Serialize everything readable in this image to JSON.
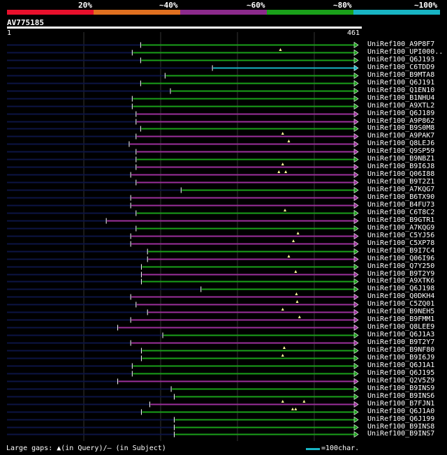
{
  "legend": {
    "items": [
      {
        "label": "20%",
        "color": "#e8102c"
      },
      {
        "label": "~40%",
        "color": "#e07020"
      },
      {
        "label": "~60%",
        "color": "#8c2a8c"
      },
      {
        "label": "~80%",
        "color": "#1aa01a"
      },
      {
        "label": "~100%",
        "color": "#18b4c4"
      }
    ]
  },
  "query": {
    "accession": "AV775185",
    "start_label": "1",
    "end_label": "461",
    "length": 461
  },
  "colors": {
    "green": "#1aa01a",
    "purple": "#9b2f9b",
    "cyan": "#18b4c4",
    "navy": "#0c1444",
    "grid": "#333333",
    "ruler": "#ffffff"
  },
  "hits": [
    {
      "name": "UniRef100_A9P8F7",
      "color": "green",
      "start": 176,
      "gap": null
    },
    {
      "name": "UniRef100_UPI000..",
      "color": "green",
      "start": 165,
      "gap": null
    },
    {
      "name": "UniRef100_Q6J193",
      "color": "green",
      "start": 176,
      "gap": null
    },
    {
      "name": "UniRef100_C6TDD9",
      "color": "cyan",
      "start": 270,
      "gap": null
    },
    {
      "name": "UniRef100_B9MTA8",
      "color": "green",
      "start": 208,
      "gap": null
    },
    {
      "name": "UniRef100_Q6J191",
      "color": "green",
      "start": 176,
      "gap": null
    },
    {
      "name": "UniRef100_Q1EN10",
      "color": "green",
      "start": 215,
      "gap": null
    },
    {
      "name": "UniRef100_B1NHU4",
      "color": "green",
      "start": 165,
      "gap": null
    },
    {
      "name": "UniRef100_A9XTL2",
      "color": "green",
      "start": 165,
      "gap": null
    },
    {
      "name": "UniRef100_Q6J189",
      "color": "purple",
      "start": 170,
      "gap": null
    },
    {
      "name": "UniRef100_A9P862",
      "color": "purple",
      "start": 170,
      "gap": null
    },
    {
      "name": "UniRef100_B9S0M8",
      "color": "green",
      "start": 176,
      "gap": null
    },
    {
      "name": "UniRef100_A9PAK7",
      "color": "purple",
      "start": 170,
      "gap": null
    },
    {
      "name": "UniRef100_Q8LEJ6",
      "color": "purple",
      "start": 161,
      "gap": null
    },
    {
      "name": "UniRef100_Q9SP59",
      "color": "purple",
      "start": 170,
      "gap": null
    },
    {
      "name": "UniRef100_B9NBZ1",
      "color": "green",
      "start": 170,
      "gap": null
    },
    {
      "name": "UniRef100_B9I6J8",
      "color": "purple",
      "start": 170,
      "gap": null
    },
    {
      "name": "UniRef100_Q06I88",
      "color": "purple",
      "start": 163,
      "gap": null
    },
    {
      "name": "UniRef100_B9T2Z1",
      "color": "purple",
      "start": 170,
      "gap": null
    },
    {
      "name": "UniRef100_A7KQG7",
      "color": "green",
      "start": 229,
      "gap": null
    },
    {
      "name": "UniRef100_B6TX90",
      "color": "purple",
      "start": 163,
      "gap": null
    },
    {
      "name": "UniRef100_B4FU73",
      "color": "purple",
      "start": 163,
      "gap": null
    },
    {
      "name": "UniRef100_C6T8C2",
      "color": "green",
      "start": 170,
      "gap": null
    },
    {
      "name": "UniRef100_B9GTR1",
      "color": "purple",
      "start": 131,
      "gap": null
    },
    {
      "name": "UniRef100_A7KQG9",
      "color": "green",
      "start": 170,
      "gap": null
    },
    {
      "name": "UniRef100_C5YJ56",
      "color": "purple",
      "start": 163,
      "gap": null
    },
    {
      "name": "UniRef100_C5XP78",
      "color": "purple",
      "start": 163,
      "gap": null
    },
    {
      "name": "UniRef100_B9I7C4",
      "color": "green",
      "start": 185,
      "gap": null
    },
    {
      "name": "UniRef100_Q06I96",
      "color": "purple",
      "start": 185,
      "gap": null
    },
    {
      "name": "UniRef100_Q7Y250",
      "color": "green",
      "start": 177,
      "gap": null
    },
    {
      "name": "UniRef100_B9T2Y9",
      "color": "purple",
      "start": 177,
      "gap": null
    },
    {
      "name": "UniRef100_A9XTK6",
      "color": "green",
      "start": 177,
      "gap": null
    },
    {
      "name": "UniRef100_Q6J198",
      "color": "green",
      "start": 255,
      "gap": null
    },
    {
      "name": "UniRef100_Q0DKH4",
      "color": "purple",
      "start": 163,
      "gap": null
    },
    {
      "name": "UniRef100_C5ZQ01",
      "color": "purple",
      "start": 170,
      "gap": null
    },
    {
      "name": "UniRef100_B9NEH5",
      "color": "purple",
      "start": 185,
      "gap": null
    },
    {
      "name": "UniRef100_B9FMM1",
      "color": "purple",
      "start": 163,
      "gap": null
    },
    {
      "name": "UniRef100_Q8LEE9",
      "color": "purple",
      "start": 146,
      "gap": null
    },
    {
      "name": "UniRef100_Q6J1A3",
      "color": "green",
      "start": 205,
      "gap": null
    },
    {
      "name": "UniRef100_B9T2Y7",
      "color": "purple",
      "start": 163,
      "gap": null
    },
    {
      "name": "UniRef100_B9NF80",
      "color": "green",
      "start": 177,
      "gap": null
    },
    {
      "name": "UniRef100_B9I6J9",
      "color": "green",
      "start": 177,
      "gap": null
    },
    {
      "name": "UniRef100_Q6J1A1",
      "color": "green",
      "start": 165,
      "gap": null
    },
    {
      "name": "UniRef100_Q6J195",
      "color": "green",
      "start": 165,
      "gap": null
    },
    {
      "name": "UniRef100_Q2V5Z9",
      "color": "purple",
      "start": 146,
      "gap": null
    },
    {
      "name": "UniRef100_B9INS9",
      "color": "green",
      "start": 216,
      "gap": null
    },
    {
      "name": "UniRef100_B9INS6",
      "color": "green",
      "start": 220,
      "gap": null
    },
    {
      "name": "UniRef100_B7FJN1",
      "color": "purple",
      "start": 188,
      "gap": null
    },
    {
      "name": "UniRef100_Q6J1A0",
      "color": "green",
      "start": 177,
      "gap": null
    },
    {
      "name": "UniRef100_Q6J199",
      "color": "green",
      "start": 220,
      "gap": null
    },
    {
      "name": "UniRef100_B9INS8",
      "color": "green",
      "start": 220,
      "gap": null
    },
    {
      "name": "UniRef100_B9INS7",
      "color": "green",
      "start": 220,
      "gap": null
    }
  ],
  "query_gaps": [
    {
      "row": 1,
      "pos": 359
    },
    {
      "row": 12,
      "pos": 362
    },
    {
      "row": 13,
      "pos": 370
    },
    {
      "row": 16,
      "pos": 362
    },
    {
      "row": 17,
      "pos": 357
    },
    {
      "row": 17,
      "pos": 366
    },
    {
      "row": 22,
      "pos": 365
    },
    {
      "row": 25,
      "pos": 382
    },
    {
      "row": 26,
      "pos": 376
    },
    {
      "row": 28,
      "pos": 370
    },
    {
      "row": 30,
      "pos": 379
    },
    {
      "row": 33,
      "pos": 380
    },
    {
      "row": 34,
      "pos": 381
    },
    {
      "row": 35,
      "pos": 362
    },
    {
      "row": 36,
      "pos": 384
    },
    {
      "row": 40,
      "pos": 364
    },
    {
      "row": 41,
      "pos": 362
    },
    {
      "row": 47,
      "pos": 362
    },
    {
      "row": 47,
      "pos": 390
    },
    {
      "row": 48,
      "pos": 375
    },
    {
      "row": 48,
      "pos": 379
    }
  ],
  "footer": {
    "gaps_text": "Large gaps: ▲(in Query)/— (in Subject)",
    "scale_text": "=100char."
  }
}
